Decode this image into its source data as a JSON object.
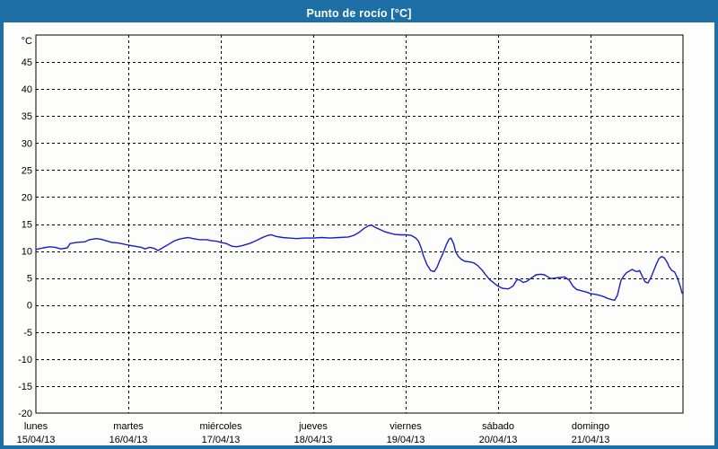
{
  "window": {
    "title": "Punto de rocío [°C]"
  },
  "colors": {
    "frame_blue": "#1d6fa5",
    "title_text": "#ffffff",
    "line_blue": "#1b1bc8",
    "grid_black": "#000000",
    "background": "#fdfdfb"
  },
  "chart_data": {
    "type": "line",
    "title": "Punto de rocío [°C]",
    "ylabel": "°C",
    "unit_label": "°C",
    "ylim": [
      -20,
      50
    ],
    "ytick_min": -20,
    "ytick_max": 45,
    "ytick_step": 5,
    "grid": "dashed",
    "legend_position": "none",
    "x_axis": {
      "unit": "days",
      "xlim_days": [
        0,
        7
      ],
      "categories": [
        {
          "name": "lunes",
          "date": "15/04/13"
        },
        {
          "name": "martes",
          "date": "16/04/13"
        },
        {
          "name": "miércoles",
          "date": "17/04/13"
        },
        {
          "name": "jueves",
          "date": "18/04/13"
        },
        {
          "name": "viernes",
          "date": "19/04/13"
        },
        {
          "name": "sábado",
          "date": "20/04/13"
        },
        {
          "name": "domingo",
          "date": "21/04/13"
        }
      ]
    },
    "series": [
      {
        "name": "Punto de rocío",
        "color": "#1b1bc8",
        "points_day_value": [
          [
            0.0,
            10.3
          ],
          [
            0.08,
            10.6
          ],
          [
            0.15,
            10.8
          ],
          [
            0.21,
            10.7
          ],
          [
            0.27,
            10.4
          ],
          [
            0.34,
            10.6
          ],
          [
            0.37,
            11.4
          ],
          [
            0.44,
            11.6
          ],
          [
            0.53,
            11.7
          ],
          [
            0.58,
            12.1
          ],
          [
            0.65,
            12.3
          ],
          [
            0.7,
            12.2
          ],
          [
            0.76,
            11.9
          ],
          [
            0.82,
            11.6
          ],
          [
            0.89,
            11.5
          ],
          [
            0.95,
            11.3
          ],
          [
            1.0,
            11.1
          ],
          [
            1.07,
            10.9
          ],
          [
            1.14,
            10.7
          ],
          [
            1.18,
            10.4
          ],
          [
            1.23,
            10.7
          ],
          [
            1.28,
            10.5
          ],
          [
            1.32,
            10.1
          ],
          [
            1.38,
            10.7
          ],
          [
            1.44,
            11.3
          ],
          [
            1.5,
            11.9
          ],
          [
            1.55,
            12.2
          ],
          [
            1.61,
            12.4
          ],
          [
            1.65,
            12.5
          ],
          [
            1.7,
            12.3
          ],
          [
            1.77,
            12.1
          ],
          [
            1.85,
            12.1
          ],
          [
            1.9,
            11.9
          ],
          [
            1.96,
            11.8
          ],
          [
            2.0,
            11.6
          ],
          [
            2.06,
            11.4
          ],
          [
            2.12,
            10.9
          ],
          [
            2.17,
            10.8
          ],
          [
            2.23,
            11.0
          ],
          [
            2.31,
            11.4
          ],
          [
            2.38,
            11.9
          ],
          [
            2.45,
            12.5
          ],
          [
            2.51,
            12.9
          ],
          [
            2.55,
            13.0
          ],
          [
            2.6,
            12.7
          ],
          [
            2.67,
            12.5
          ],
          [
            2.74,
            12.4
          ],
          [
            2.82,
            12.3
          ],
          [
            2.91,
            12.4
          ],
          [
            3.0,
            12.4
          ],
          [
            3.09,
            12.5
          ],
          [
            3.18,
            12.4
          ],
          [
            3.28,
            12.5
          ],
          [
            3.38,
            12.6
          ],
          [
            3.44,
            12.9
          ],
          [
            3.5,
            13.5
          ],
          [
            3.55,
            14.2
          ],
          [
            3.6,
            14.7
          ],
          [
            3.63,
            14.8
          ],
          [
            3.67,
            14.4
          ],
          [
            3.72,
            14.0
          ],
          [
            3.77,
            13.6
          ],
          [
            3.83,
            13.3
          ],
          [
            3.88,
            13.1
          ],
          [
            3.94,
            13.0
          ],
          [
            4.0,
            13.0
          ],
          [
            4.06,
            12.9
          ],
          [
            4.11,
            12.4
          ],
          [
            4.14,
            11.8
          ],
          [
            4.17,
            10.5
          ],
          [
            4.19,
            9.2
          ],
          [
            4.23,
            7.5
          ],
          [
            4.27,
            6.4
          ],
          [
            4.31,
            6.2
          ],
          [
            4.34,
            7.0
          ],
          [
            4.37,
            8.3
          ],
          [
            4.41,
            9.8
          ],
          [
            4.44,
            11.2
          ],
          [
            4.47,
            12.2
          ],
          [
            4.49,
            12.4
          ],
          [
            4.52,
            11.3
          ],
          [
            4.54,
            9.9
          ],
          [
            4.57,
            9.0
          ],
          [
            4.6,
            8.5
          ],
          [
            4.64,
            8.1
          ],
          [
            4.69,
            8.0
          ],
          [
            4.74,
            7.8
          ],
          [
            4.78,
            7.3
          ],
          [
            4.83,
            6.4
          ],
          [
            4.86,
            5.7
          ],
          [
            4.91,
            4.7
          ],
          [
            4.96,
            4.0
          ],
          [
            5.0,
            3.5
          ],
          [
            5.05,
            3.1
          ],
          [
            5.11,
            3.0
          ],
          [
            5.16,
            3.5
          ],
          [
            5.2,
            4.6
          ],
          [
            5.23,
            4.7
          ],
          [
            5.27,
            4.2
          ],
          [
            5.31,
            4.4
          ],
          [
            5.36,
            5.0
          ],
          [
            5.41,
            5.6
          ],
          [
            5.46,
            5.7
          ],
          [
            5.5,
            5.6
          ],
          [
            5.53,
            5.3
          ],
          [
            5.57,
            4.9
          ],
          [
            5.62,
            5.0
          ],
          [
            5.67,
            5.1
          ],
          [
            5.72,
            5.2
          ],
          [
            5.77,
            4.6
          ],
          [
            5.81,
            3.5
          ],
          [
            5.85,
            2.9
          ],
          [
            5.91,
            2.6
          ],
          [
            5.96,
            2.4
          ],
          [
            6.0,
            2.1
          ],
          [
            6.05,
            2.0
          ],
          [
            6.1,
            1.8
          ],
          [
            6.15,
            1.5
          ],
          [
            6.19,
            1.2
          ],
          [
            6.23,
            1.0
          ],
          [
            6.26,
            0.9
          ],
          [
            6.29,
            1.8
          ],
          [
            6.31,
            3.2
          ],
          [
            6.33,
            4.6
          ],
          [
            6.36,
            5.4
          ],
          [
            6.39,
            6.0
          ],
          [
            6.42,
            6.3
          ],
          [
            6.45,
            6.6
          ],
          [
            6.48,
            6.3
          ],
          [
            6.51,
            6.2
          ],
          [
            6.53,
            6.4
          ],
          [
            6.56,
            5.3
          ],
          [
            6.59,
            4.3
          ],
          [
            6.62,
            4.1
          ],
          [
            6.65,
            5.0
          ],
          [
            6.68,
            6.2
          ],
          [
            6.71,
            7.5
          ],
          [
            6.74,
            8.6
          ],
          [
            6.77,
            9.0
          ],
          [
            6.8,
            8.7
          ],
          [
            6.83,
            7.9
          ],
          [
            6.85,
            7.1
          ],
          [
            6.88,
            6.4
          ],
          [
            6.91,
            6.1
          ],
          [
            6.94,
            5.0
          ],
          [
            6.97,
            3.5
          ],
          [
            6.99,
            2.2
          ]
        ]
      }
    ]
  }
}
